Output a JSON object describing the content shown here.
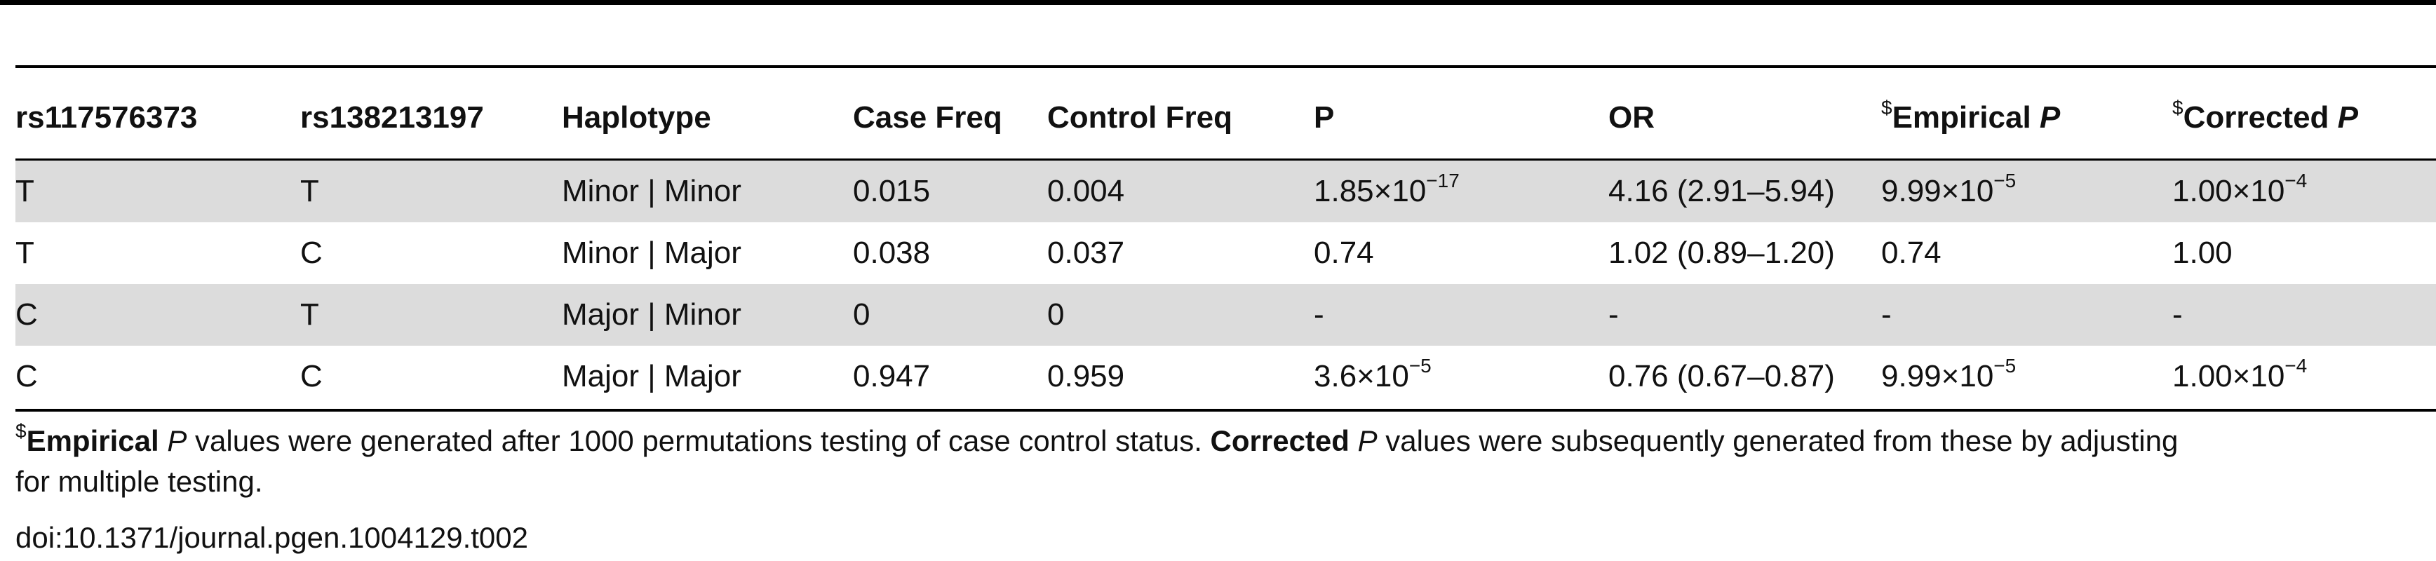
{
  "table": {
    "headers": [
      {
        "key": "snp1",
        "label": "rs117576373"
      },
      {
        "key": "snp2",
        "label": "rs138213197"
      },
      {
        "key": "haplotype",
        "label": "Haplotype"
      },
      {
        "key": "case_freq",
        "label": "Case Freq"
      },
      {
        "key": "control_freq",
        "label": "Control Freq"
      },
      {
        "key": "p",
        "label": "P"
      },
      {
        "key": "or",
        "label": "OR"
      },
      {
        "key": "empirical_p",
        "marker": "$",
        "label": "Empirical ",
        "label_italic": "P"
      },
      {
        "key": "corrected_p",
        "marker": "$",
        "label": "Corrected ",
        "label_italic": "P"
      }
    ],
    "rows": [
      {
        "snp1": "T",
        "snp2": "T",
        "haplotype": "Minor | Minor",
        "case_freq": "0.015",
        "control_freq": "0.004",
        "p": {
          "mantissa": "1.85",
          "times": "×",
          "base": "10",
          "exp": "−17"
        },
        "or": "4.16 (2.91–5.94)",
        "empirical_p": {
          "mantissa": "9.99",
          "times": "×",
          "base": "10",
          "exp": "−5"
        },
        "corrected_p": {
          "mantissa": "1.00",
          "times": "×",
          "base": "10",
          "exp": "−4"
        }
      },
      {
        "snp1": "T",
        "snp2": "C",
        "haplotype": "Minor | Major",
        "case_freq": "0.038",
        "control_freq": "0.037",
        "p": {
          "mantissa": "0.74"
        },
        "or": "1.02 (0.89–1.20)",
        "empirical_p": {
          "mantissa": "0.74"
        },
        "corrected_p": {
          "mantissa": "1.00"
        }
      },
      {
        "snp1": "C",
        "snp2": "T",
        "haplotype": "Major | Minor",
        "case_freq": "0",
        "control_freq": "0",
        "p": {
          "mantissa": "-"
        },
        "or": "-",
        "empirical_p": {
          "mantissa": "-"
        },
        "corrected_p": {
          "mantissa": "-"
        }
      },
      {
        "snp1": "C",
        "snp2": "C",
        "haplotype": "Major | Major",
        "case_freq": "0.947",
        "control_freq": "0.959",
        "p": {
          "mantissa": "3.6",
          "times": "×",
          "base": "10",
          "exp": "−5"
        },
        "or": "0.76 (0.67–0.87)",
        "empirical_p": {
          "mantissa": "9.99",
          "times": "×",
          "base": "10",
          "exp": "−5"
        },
        "corrected_p": {
          "mantissa": "1.00",
          "times": "×",
          "base": "10",
          "exp": "−4"
        }
      }
    ]
  },
  "footnote": {
    "marker": "$",
    "part1_bold": "Empirical",
    "part2_italic": " P",
    "part3": " values were generated after 1000 permutations testing of case control status. ",
    "part4_bold": "Corrected",
    "part5_italic": " P",
    "part6": " values were subsequently generated from these by adjusting",
    "line2": "for multiple testing."
  },
  "doi": "doi:10.1371/journal.pgen.1004129.t002"
}
